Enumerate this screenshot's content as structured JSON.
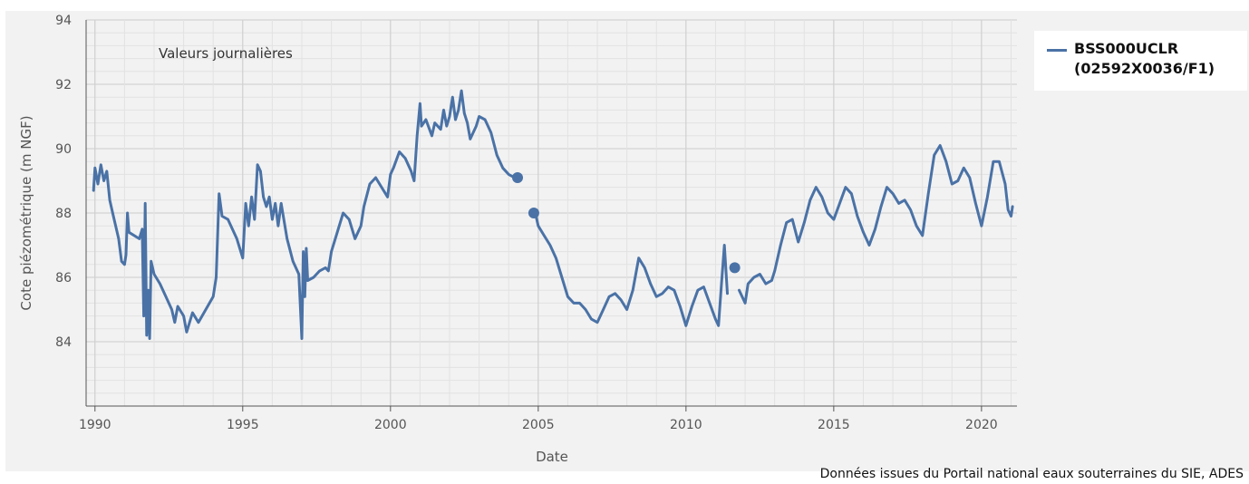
{
  "chart_data": {
    "type": "line",
    "annotation": "Valeurs journalières",
    "ylabel": "Cote piézométrique (m NGF)",
    "xlabel": "Date",
    "xlim": [
      1989.7,
      2021.2
    ],
    "ylim": [
      82,
      94
    ],
    "y_ticks": [
      "84",
      "86",
      "88",
      "90",
      "92",
      "94"
    ],
    "x_ticks": [
      "1990",
      "1995",
      "2000",
      "2005",
      "2010",
      "2015",
      "2020"
    ],
    "grid": true,
    "legend_position": "right",
    "colors": {
      "series": "#4a72a6",
      "plot_bg": "#f2f2f2",
      "grid": "#cccccc"
    },
    "series": [
      {
        "name": "BSS000UCLR (02592X0036/F1)",
        "segments": [
          [
            [
              1989.95,
              88.7
            ],
            [
              1990.0,
              89.4
            ],
            [
              1990.1,
              88.9
            ],
            [
              1990.2,
              89.5
            ],
            [
              1990.3,
              89.0
            ],
            [
              1990.4,
              89.3
            ],
            [
              1990.5,
              88.4
            ],
            [
              1990.6,
              88.0
            ],
            [
              1990.7,
              87.6
            ],
            [
              1990.8,
              87.2
            ],
            [
              1990.9,
              86.5
            ],
            [
              1991.0,
              86.4
            ],
            [
              1991.05,
              86.7
            ],
            [
              1991.1,
              88.0
            ],
            [
              1991.15,
              87.4
            ],
            [
              1991.5,
              87.2
            ],
            [
              1991.6,
              87.5
            ],
            [
              1991.65,
              84.8
            ],
            [
              1991.7,
              88.3
            ],
            [
              1991.75,
              84.2
            ],
            [
              1991.8,
              85.6
            ],
            [
              1991.85,
              84.1
            ],
            [
              1991.9,
              86.5
            ],
            [
              1992.0,
              86.1
            ],
            [
              1992.2,
              85.8
            ],
            [
              1992.4,
              85.4
            ],
            [
              1992.6,
              85.0
            ],
            [
              1992.7,
              84.6
            ],
            [
              1992.8,
              85.1
            ],
            [
              1993.0,
              84.8
            ],
            [
              1993.1,
              84.3
            ],
            [
              1993.3,
              84.9
            ],
            [
              1993.5,
              84.6
            ],
            [
              1994.0,
              85.4
            ],
            [
              1994.1,
              86.0
            ],
            [
              1994.2,
              88.6
            ],
            [
              1994.3,
              87.9
            ],
            [
              1994.5,
              87.8
            ],
            [
              1994.8,
              87.2
            ],
            [
              1995.0,
              86.6
            ],
            [
              1995.1,
              88.3
            ],
            [
              1995.2,
              87.6
            ],
            [
              1995.3,
              88.5
            ],
            [
              1995.4,
              87.8
            ],
            [
              1995.5,
              89.5
            ],
            [
              1995.6,
              89.3
            ],
            [
              1995.7,
              88.5
            ],
            [
              1995.8,
              88.2
            ],
            [
              1995.9,
              88.5
            ],
            [
              1996.0,
              87.8
            ],
            [
              1996.1,
              88.3
            ],
            [
              1996.2,
              87.6
            ],
            [
              1996.3,
              88.3
            ],
            [
              1996.5,
              87.2
            ],
            [
              1996.7,
              86.5
            ],
            [
              1996.9,
              86.1
            ],
            [
              1997.0,
              84.1
            ],
            [
              1997.05,
              86.8
            ],
            [
              1997.1,
              85.4
            ],
            [
              1997.15,
              86.9
            ],
            [
              1997.2,
              85.9
            ],
            [
              1997.4,
              86.0
            ],
            [
              1997.6,
              86.2
            ],
            [
              1997.8,
              86.3
            ],
            [
              1997.9,
              86.2
            ],
            [
              1998.0,
              86.8
            ],
            [
              1998.2,
              87.4
            ],
            [
              1998.4,
              88.0
            ],
            [
              1998.6,
              87.8
            ],
            [
              1998.8,
              87.2
            ],
            [
              1999.0,
              87.6
            ],
            [
              1999.1,
              88.2
            ],
            [
              1999.3,
              88.9
            ],
            [
              1999.5,
              89.1
            ],
            [
              1999.7,
              88.8
            ],
            [
              1999.9,
              88.5
            ],
            [
              2000.0,
              89.2
            ],
            [
              2000.1,
              89.4
            ],
            [
              2000.3,
              89.9
            ],
            [
              2000.5,
              89.7
            ],
            [
              2000.7,
              89.3
            ],
            [
              2000.8,
              89.0
            ],
            [
              2000.9,
              90.4
            ],
            [
              2001.0,
              91.4
            ],
            [
              2001.05,
              90.7
            ],
            [
              2001.2,
              90.9
            ],
            [
              2001.4,
              90.4
            ],
            [
              2001.5,
              90.8
            ],
            [
              2001.7,
              90.6
            ],
            [
              2001.8,
              91.2
            ],
            [
              2001.9,
              90.7
            ],
            [
              2002.0,
              91.0
            ],
            [
              2002.1,
              91.6
            ],
            [
              2002.2,
              90.9
            ],
            [
              2002.3,
              91.2
            ],
            [
              2002.4,
              91.8
            ],
            [
              2002.5,
              91.1
            ],
            [
              2002.6,
              90.8
            ],
            [
              2002.7,
              90.3
            ],
            [
              2002.8,
              90.5
            ],
            [
              2002.9,
              90.7
            ],
            [
              2003.0,
              91.0
            ],
            [
              2003.2,
              90.9
            ],
            [
              2003.4,
              90.5
            ],
            [
              2003.6,
              89.8
            ],
            [
              2003.8,
              89.4
            ],
            [
              2004.0,
              89.2
            ],
            [
              2004.2,
              89.1
            ]
          ],
          [
            [
              2004.8,
              88.0
            ]
          ],
          [
            [
              2004.9,
              88.0
            ],
            [
              2005.0,
              87.6
            ],
            [
              2005.2,
              87.3
            ],
            [
              2005.4,
              87.0
            ],
            [
              2005.6,
              86.6
            ],
            [
              2005.8,
              86.0
            ],
            [
              2006.0,
              85.4
            ],
            [
              2006.2,
              85.2
            ],
            [
              2006.4,
              85.2
            ],
            [
              2006.6,
              85.0
            ],
            [
              2006.8,
              84.7
            ],
            [
              2007.0,
              84.6
            ],
            [
              2007.2,
              85.0
            ],
            [
              2007.4,
              85.4
            ],
            [
              2007.6,
              85.5
            ],
            [
              2007.8,
              85.3
            ],
            [
              2008.0,
              85.0
            ],
            [
              2008.2,
              85.6
            ],
            [
              2008.4,
              86.6
            ],
            [
              2008.6,
              86.3
            ],
            [
              2008.8,
              85.8
            ],
            [
              2009.0,
              85.4
            ],
            [
              2009.2,
              85.5
            ],
            [
              2009.4,
              85.7
            ],
            [
              2009.6,
              85.6
            ],
            [
              2009.8,
              85.1
            ],
            [
              2010.0,
              84.5
            ],
            [
              2010.2,
              85.1
            ],
            [
              2010.4,
              85.6
            ],
            [
              2010.6,
              85.7
            ],
            [
              2010.8,
              85.2
            ],
            [
              2011.0,
              84.7
            ],
            [
              2011.1,
              84.5
            ],
            [
              2011.2,
              85.8
            ],
            [
              2011.3,
              87.0
            ],
            [
              2011.4,
              85.5
            ]
          ],
          [
            [
              2011.65,
              86.3
            ]
          ],
          [
            [
              2011.8,
              85.6
            ],
            [
              2012.0,
              85.2
            ],
            [
              2012.1,
              85.8
            ],
            [
              2012.3,
              86.0
            ],
            [
              2012.5,
              86.1
            ],
            [
              2012.7,
              85.8
            ],
            [
              2012.9,
              85.9
            ],
            [
              2013.0,
              86.2
            ],
            [
              2013.2,
              87.0
            ],
            [
              2013.4,
              87.7
            ],
            [
              2013.6,
              87.8
            ],
            [
              2013.8,
              87.1
            ],
            [
              2014.0,
              87.7
            ],
            [
              2014.2,
              88.4
            ],
            [
              2014.4,
              88.8
            ],
            [
              2014.6,
              88.5
            ],
            [
              2014.8,
              88.0
            ],
            [
              2015.0,
              87.8
            ],
            [
              2015.2,
              88.3
            ],
            [
              2015.4,
              88.8
            ],
            [
              2015.6,
              88.6
            ],
            [
              2015.8,
              87.9
            ],
            [
              2016.0,
              87.4
            ],
            [
              2016.2,
              87.0
            ],
            [
              2016.4,
              87.5
            ],
            [
              2016.6,
              88.2
            ],
            [
              2016.8,
              88.8
            ],
            [
              2017.0,
              88.6
            ],
            [
              2017.2,
              88.3
            ],
            [
              2017.4,
              88.4
            ],
            [
              2017.6,
              88.1
            ],
            [
              2017.8,
              87.6
            ],
            [
              2018.0,
              87.3
            ],
            [
              2018.2,
              88.6
            ],
            [
              2018.4,
              89.8
            ],
            [
              2018.6,
              90.1
            ],
            [
              2018.8,
              89.6
            ],
            [
              2019.0,
              88.9
            ],
            [
              2019.2,
              89.0
            ],
            [
              2019.4,
              89.4
            ],
            [
              2019.6,
              89.1
            ],
            [
              2019.8,
              88.3
            ],
            [
              2020.0,
              87.6
            ],
            [
              2020.2,
              88.5
            ],
            [
              2020.4,
              89.6
            ],
            [
              2020.6,
              89.6
            ],
            [
              2020.8,
              88.9
            ],
            [
              2020.9,
              88.1
            ],
            [
              2021.0,
              87.9
            ],
            [
              2021.05,
              88.2
            ]
          ]
        ],
        "markers": [
          [
            2004.3,
            89.1
          ],
          [
            2004.85,
            88.0
          ],
          [
            2011.65,
            86.3
          ]
        ]
      }
    ],
    "source_note": "Données issues du Portail national eaux souterraines du SIE, ADES"
  }
}
